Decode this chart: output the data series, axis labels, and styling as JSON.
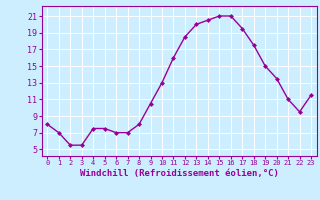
{
  "x": [
    0,
    1,
    2,
    3,
    4,
    5,
    6,
    7,
    8,
    9,
    10,
    11,
    12,
    13,
    14,
    15,
    16,
    17,
    18,
    19,
    20,
    21,
    22,
    23
  ],
  "y": [
    8.0,
    7.0,
    5.5,
    5.5,
    7.5,
    7.5,
    7.0,
    7.0,
    8.0,
    10.5,
    13.0,
    16.0,
    18.5,
    20.0,
    20.5,
    21.0,
    21.0,
    19.5,
    17.5,
    15.0,
    13.5,
    11.0,
    9.5,
    11.5
  ],
  "line_color": "#990099",
  "marker": "D",
  "markersize": 2.0,
  "linewidth": 1.0,
  "xlabel": "Windchill (Refroidissement éolien,°C)",
  "xlabel_fontsize": 6.5,
  "bg_color": "#cceeff",
  "grid_color": "#ffffff",
  "tick_color": "#990099",
  "label_color": "#990099",
  "yticks": [
    5,
    7,
    9,
    11,
    13,
    15,
    17,
    19,
    21
  ],
  "ylim": [
    4.2,
    22.2
  ],
  "xlim": [
    -0.5,
    23.5
  ],
  "ytick_fontsize": 6.0,
  "xtick_fontsize": 5.0
}
